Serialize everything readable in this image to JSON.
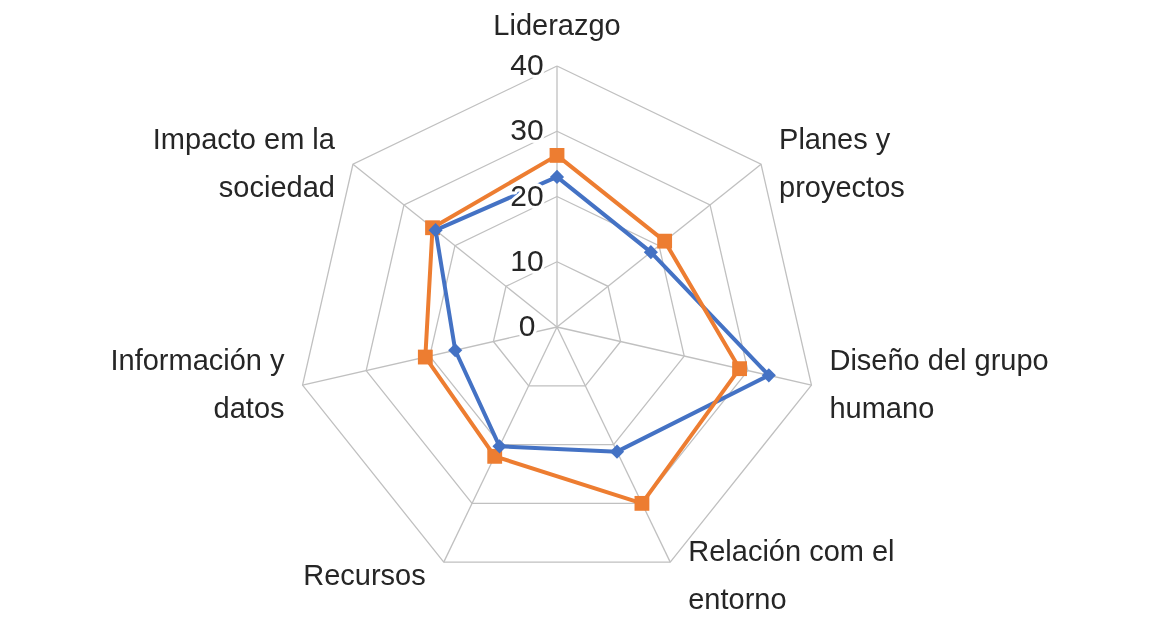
{
  "chart_data": {
    "type": "radar",
    "categories": [
      "Liderazgo",
      "Planes y proyectos",
      "Diseño del grupo humano",
      "Relación com el entorno",
      "Recursos",
      "Información y datos",
      "Impacto em la sociedad"
    ],
    "series": [
      {
        "color": "#4472c4",
        "marker": "diamond",
        "values": [
          23,
          18.4,
          33.3,
          21.2,
          20.3,
          16,
          23.8
        ]
      },
      {
        "color": "#ed7d31",
        "marker": "square",
        "values": [
          26.3,
          21.1,
          28.7,
          30,
          22,
          20.7,
          24.4
        ]
      }
    ],
    "ylim": [
      0,
      40
    ],
    "yticks": [
      {
        "value": 0,
        "label": "0"
      },
      10,
      20,
      30,
      40
    ],
    "grid": true
  }
}
